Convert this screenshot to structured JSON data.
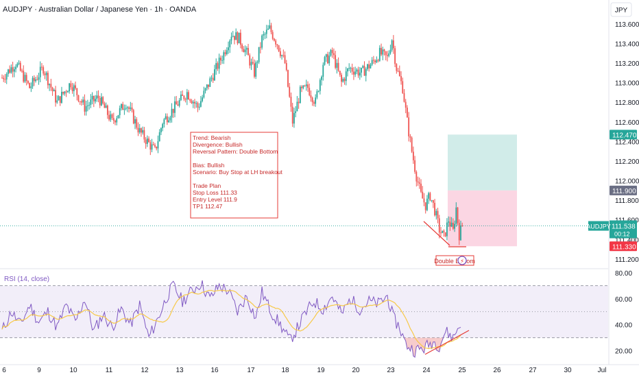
{
  "header": {
    "title": "AUDJPY · Australian Dollar / Japanese Yen · 1h · OANDA",
    "currency": "JPY"
  },
  "colors": {
    "up": "#26a69a",
    "down": "#ef5350",
    "rsi_line": "#7e57c2",
    "rsi_ma": "#f7c948",
    "annotation": "#e53935",
    "target_zone": "#b2dfdb",
    "stop_zone": "#f8bbd0",
    "price_label": "#26a69a",
    "entry_label": "#6b6f84",
    "stop_label": "#f23645"
  },
  "annotation_box": {
    "lines": [
      "Trend: Bearish",
      "Divergence: Bullish",
      "Reversal Pattern: Double Bottom",
      "",
      "Bias: Bullish",
      "Scenario: Buy Stop at LH breakout",
      "",
      "Trade Plan",
      "Stop Loss  111.33",
      "Entry Level 111.9",
      "TP1 112.47"
    ]
  },
  "pattern_label": "Double Bottom",
  "price_labels": {
    "tp": "112.470",
    "entry": "111.900",
    "symbol": "AUDJPY",
    "last": "111.538",
    "countdown": "00:12",
    "stop": "111.330"
  },
  "rsi_title": "RSI (14, close)",
  "chart_data": [
    {
      "type": "candlestick",
      "title": "AUDJPY · Australian Dollar / Japanese Yen · 1h · OANDA",
      "x_ticks": [
        "6",
        "9",
        "10",
        "11",
        "12",
        "13",
        "16",
        "17",
        "18",
        "19",
        "20",
        "23",
        "24",
        "25",
        "26",
        "27",
        "30",
        "Jul"
      ],
      "y_ticks": [
        113.6,
        113.4,
        113.2,
        113.0,
        112.8,
        112.6,
        112.4,
        112.2,
        112.0,
        111.8,
        111.6,
        111.4,
        111.2
      ],
      "ylim": [
        111.15,
        113.62
      ],
      "close_path": [
        [
          0,
          113.05
        ],
        [
          9,
          113.2
        ],
        [
          18,
          112.95
        ],
        [
          27,
          113.15
        ],
        [
          36,
          112.8
        ],
        [
          45,
          113.0
        ],
        [
          54,
          112.75
        ],
        [
          63,
          112.85
        ],
        [
          72,
          112.6
        ],
        [
          81,
          112.8
        ],
        [
          90,
          112.5
        ],
        [
          100,
          112.3
        ],
        [
          105,
          112.6
        ],
        [
          113,
          112.75
        ],
        [
          121,
          112.9
        ],
        [
          128,
          112.75
        ],
        [
          137,
          113.05
        ],
        [
          145,
          113.3
        ],
        [
          150,
          113.5
        ],
        [
          155,
          113.45
        ],
        [
          160,
          113.3
        ],
        [
          165,
          113.1
        ],
        [
          170,
          113.45
        ],
        [
          175,
          113.55
        ],
        [
          180,
          113.4
        ],
        [
          185,
          113.2
        ],
        [
          190,
          112.6
        ],
        [
          195,
          112.9
        ],
        [
          200,
          112.95
        ],
        [
          205,
          112.8
        ],
        [
          210,
          113.2
        ],
        [
          216,
          113.3
        ],
        [
          222,
          113.0
        ],
        [
          227,
          113.15
        ],
        [
          235,
          113.1
        ],
        [
          242,
          113.2
        ],
        [
          247,
          113.3
        ],
        [
          252,
          113.25
        ],
        [
          255,
          113.45
        ],
        [
          258,
          113.15
        ],
        [
          262,
          112.95
        ],
        [
          265,
          112.6
        ],
        [
          268,
          112.3
        ],
        [
          271,
          112.05
        ],
        [
          274,
          111.85
        ],
        [
          277,
          111.75
        ],
        [
          280,
          111.85
        ],
        [
          283,
          111.7
        ],
        [
          286,
          111.5
        ],
        [
          289,
          111.42
        ],
        [
          292,
          111.6
        ],
        [
          295,
          111.48
        ],
        [
          297,
          111.72
        ],
        [
          299,
          111.45
        ],
        [
          301,
          111.538
        ]
      ],
      "trade_plan": {
        "stop_loss": 111.33,
        "entry": 111.9,
        "tp1": 112.47
      }
    },
    {
      "type": "line",
      "title": "RSI (14, close)",
      "y_ticks": [
        80,
        60,
        40,
        20
      ],
      "ylim": [
        13,
        82
      ],
      "bands": {
        "upper": 70,
        "middle": 50,
        "lower": 30
      },
      "rsi_path": [
        [
          0,
          35
        ],
        [
          6,
          50
        ],
        [
          12,
          40
        ],
        [
          18,
          55
        ],
        [
          24,
          42
        ],
        [
          30,
          50
        ],
        [
          36,
          38
        ],
        [
          42,
          55
        ],
        [
          48,
          42
        ],
        [
          54,
          60
        ],
        [
          60,
          35
        ],
        [
          66,
          48
        ],
        [
          72,
          38
        ],
        [
          78,
          52
        ],
        [
          84,
          40
        ],
        [
          90,
          55
        ],
        [
          96,
          30
        ],
        [
          102,
          45
        ],
        [
          108,
          62
        ],
        [
          112,
          70
        ],
        [
          118,
          58
        ],
        [
          124,
          66
        ],
        [
          130,
          72
        ],
        [
          136,
          60
        ],
        [
          142,
          70
        ],
        [
          148,
          66
        ],
        [
          154,
          50
        ],
        [
          160,
          62
        ],
        [
          166,
          45
        ],
        [
          170,
          65
        ],
        [
          176,
          50
        ],
        [
          182,
          40
        ],
        [
          188,
          28
        ],
        [
          192,
          35
        ],
        [
          198,
          48
        ],
        [
          204,
          58
        ],
        [
          210,
          52
        ],
        [
          216,
          62
        ],
        [
          222,
          48
        ],
        [
          228,
          60
        ],
        [
          234,
          52
        ],
        [
          240,
          58
        ],
        [
          246,
          56
        ],
        [
          252,
          62
        ],
        [
          256,
          45
        ],
        [
          260,
          38
        ],
        [
          264,
          25
        ],
        [
          270,
          20
        ],
        [
          276,
          22
        ],
        [
          282,
          27
        ],
        [
          286,
          24
        ],
        [
          290,
          35
        ],
        [
          295,
          30
        ],
        [
          300,
          42
        ]
      ]
    }
  ]
}
